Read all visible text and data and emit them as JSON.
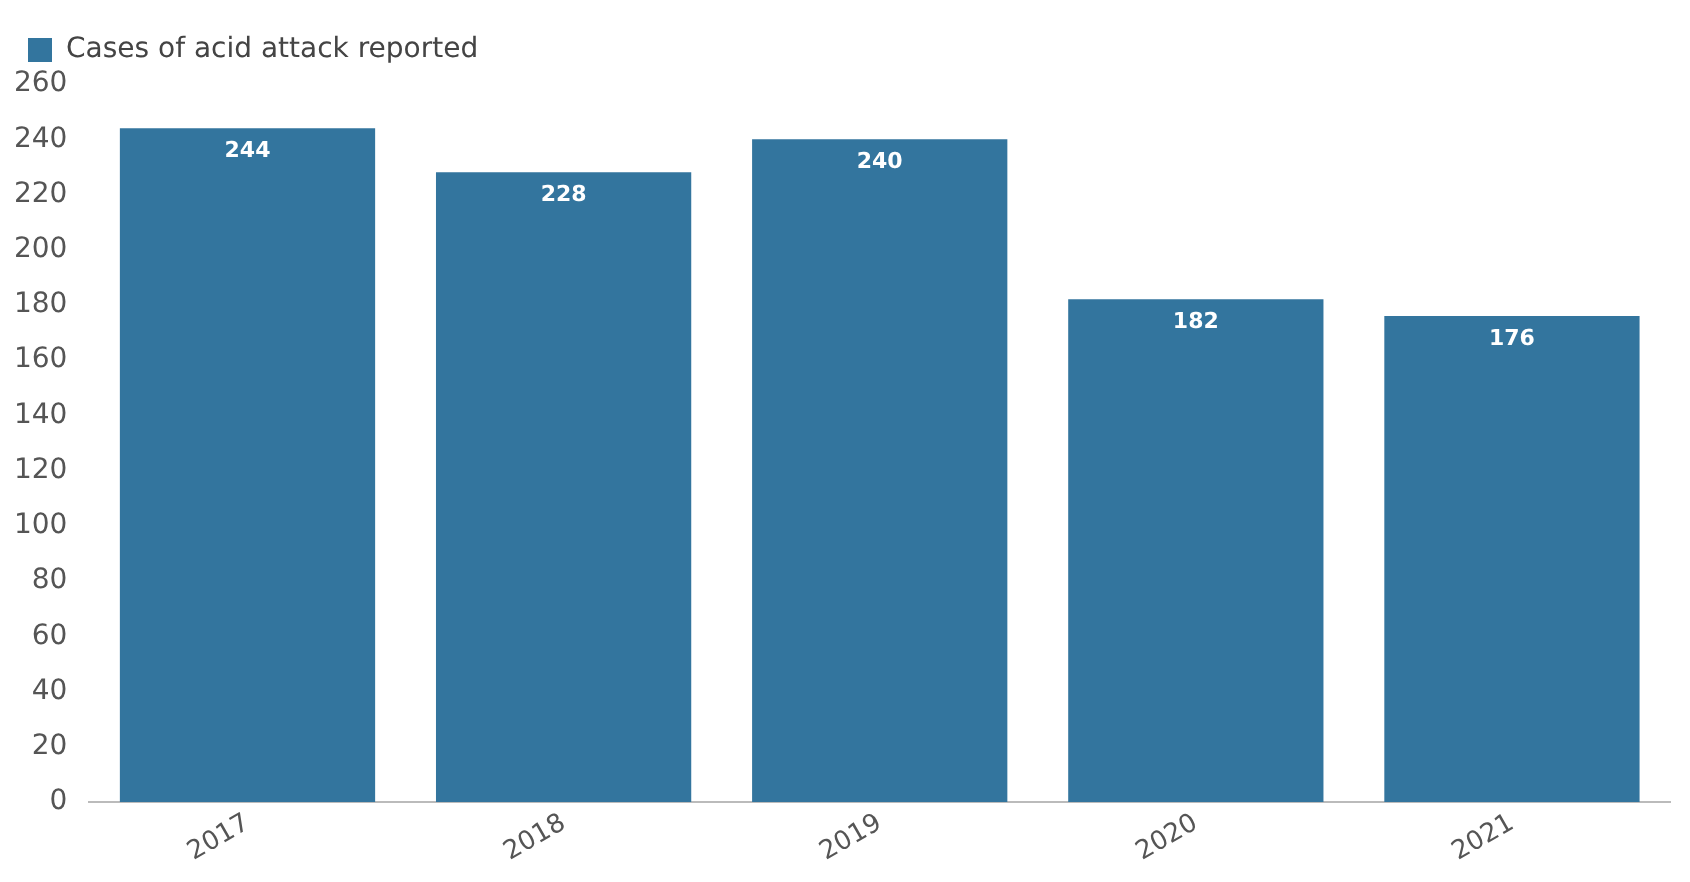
{
  "chart_data": {
    "type": "bar",
    "categories": [
      "2017",
      "2018",
      "2019",
      "2020",
      "2021"
    ],
    "series": [
      {
        "name": "Cases of acid attack reported",
        "color": "#33759e",
        "values": [
          244,
          228,
          240,
          182,
          176
        ]
      }
    ],
    "ylim": [
      0,
      260
    ],
    "yticks": [
      0,
      20,
      40,
      60,
      80,
      100,
      120,
      140,
      160,
      180,
      200,
      220,
      240,
      260
    ],
    "grid": false,
    "legend": "top left",
    "data_labels": true
  }
}
